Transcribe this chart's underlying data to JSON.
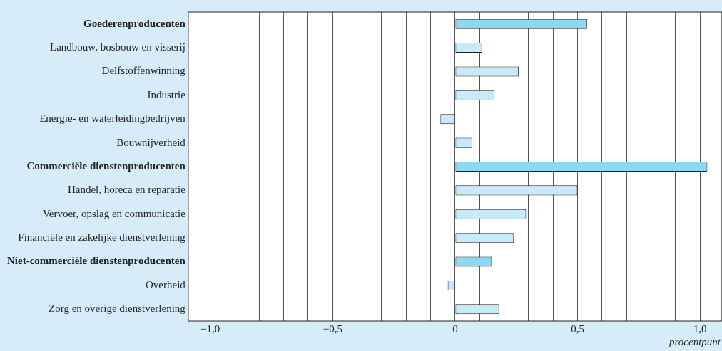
{
  "chart_data": {
    "type": "bar",
    "orientation": "horizontal",
    "xlabel": "procentpunt",
    "categories": [
      "Goederenproducenten",
      "Landbouw, bosbouw en visserij",
      "Delfstoffenwinning",
      "Industrie",
      "Energie- en waterleidingbedrijven",
      "Bouwnijverheid",
      "Commerciële dienstenproducenten",
      "Handel, horeca en reparatie",
      "Vervoer, opslag en communicatie",
      "Financiële en zakelijke dienstverlening",
      "Niet-commerciële dienstenproducenten",
      "Overheid",
      "Zorg en overige dienstverlening"
    ],
    "values": [
      0.54,
      0.11,
      0.26,
      0.16,
      -0.06,
      0.07,
      1.03,
      0.5,
      0.29,
      0.24,
      0.15,
      -0.03,
      0.18
    ],
    "colors": [
      "#8dd8f5",
      "#c8eaf8",
      "#c8eaf8",
      "#c8eaf8",
      "#c8eaf8",
      "#c8eaf8",
      "#8dd8f5",
      "#c8eaf8",
      "#c8eaf8",
      "#c8eaf8",
      "#8dd8f5",
      "#c8eaf8",
      "#c8eaf8"
    ],
    "xlim": [
      -1.09,
      1.09
    ],
    "xticks": [
      {
        "value": -1.0,
        "label": "−1,0"
      },
      {
        "value": -0.9,
        "label": null
      },
      {
        "value": -0.8,
        "label": null
      },
      {
        "value": -0.7,
        "label": null
      },
      {
        "value": -0.6,
        "label": null
      },
      {
        "value": -0.5,
        "label": "−0,5"
      },
      {
        "value": -0.4,
        "label": null
      },
      {
        "value": -0.3,
        "label": null
      },
      {
        "value": -0.2,
        "label": null
      },
      {
        "value": -0.1,
        "label": null
      },
      {
        "value": 0,
        "label": "0"
      },
      {
        "value": 0.1,
        "label": null
      },
      {
        "value": 0.2,
        "label": null
      },
      {
        "value": 0.3,
        "label": null
      },
      {
        "value": 0.4,
        "label": null
      },
      {
        "value": 0.5,
        "label": "0,5"
      },
      {
        "value": 0.6,
        "label": null
      },
      {
        "value": 0.7,
        "label": null
      },
      {
        "value": 0.8,
        "label": null
      },
      {
        "value": 0.9,
        "label": null
      },
      {
        "value": 1.0,
        "label": "1,0"
      }
    ],
    "grid": "x"
  }
}
